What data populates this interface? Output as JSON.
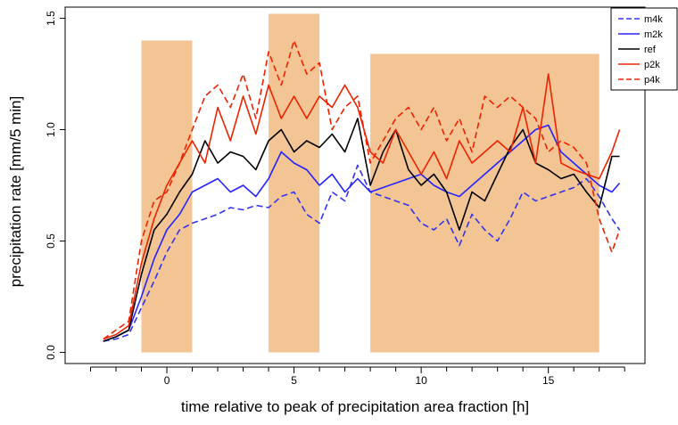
{
  "chart_data": {
    "type": "line",
    "title": "",
    "xlabel": "time relative to peak of precipitation area fraction [h]",
    "ylabel": "precipitation rate [mm/5 min]",
    "xlim": [
      -4.0,
      18.8
    ],
    "ylim": [
      -0.05,
      1.55
    ],
    "x_ticks": [
      0,
      5,
      10,
      15
    ],
    "x_minor_ticks": [
      -3,
      -2,
      -1,
      1,
      2,
      3,
      4,
      6,
      7,
      8,
      9,
      11,
      12,
      13,
      14,
      16,
      17,
      18
    ],
    "y_ticks": [
      0.0,
      0.5,
      1.0,
      1.5
    ],
    "y_tick_labels": [
      "0.0",
      "0.5",
      "1.0",
      "1.5"
    ],
    "grid": false,
    "legend_position": "top-right",
    "shaded_regions": [
      {
        "x0": -1.0,
        "x1": 1.0,
        "y_top": 1.4,
        "color": "#f3c595"
      },
      {
        "x0": 4.0,
        "x1": 6.0,
        "y_top": 1.52,
        "color": "#f3c595"
      },
      {
        "x0": 8.0,
        "x1": 17.0,
        "y_top": 1.34,
        "color": "#f3c595"
      }
    ],
    "series": [
      {
        "name": "m4k",
        "color": "#3333ee",
        "dash": true,
        "x": [
          -2.5,
          -2,
          -1.5,
          -1,
          -0.5,
          0,
          0.5,
          1,
          1.5,
          2,
          2.5,
          3,
          3.5,
          4,
          4.5,
          5,
          5.5,
          6,
          6.5,
          7,
          7.5,
          8,
          8.5,
          9,
          9.5,
          10,
          10.5,
          11,
          11.5,
          12,
          12.5,
          13,
          13.5,
          14,
          14.5,
          15,
          15.5,
          16,
          16.5,
          17,
          17.5,
          17.8
        ],
        "y": [
          0.05,
          0.06,
          0.08,
          0.2,
          0.32,
          0.45,
          0.55,
          0.58,
          0.6,
          0.62,
          0.65,
          0.64,
          0.66,
          0.65,
          0.7,
          0.72,
          0.62,
          0.58,
          0.72,
          0.68,
          0.84,
          0.72,
          0.7,
          0.68,
          0.66,
          0.58,
          0.55,
          0.6,
          0.48,
          0.62,
          0.55,
          0.5,
          0.6,
          0.72,
          0.68,
          0.7,
          0.72,
          0.74,
          0.78,
          0.7,
          0.6,
          0.55
        ]
      },
      {
        "name": "m2k",
        "color": "#2424ff",
        "dash": false,
        "x": [
          -2.5,
          -2,
          -1.5,
          -1,
          -0.5,
          0,
          0.5,
          1,
          1.5,
          2,
          2.5,
          3,
          3.5,
          4,
          4.5,
          5,
          5.5,
          6,
          6.5,
          7,
          7.5,
          8,
          8.5,
          9,
          9.5,
          10,
          10.5,
          11,
          11.5,
          12,
          12.5,
          13,
          13.5,
          14,
          14.5,
          15,
          15.5,
          16,
          16.5,
          17,
          17.5,
          17.8
        ],
        "y": [
          0.05,
          0.07,
          0.1,
          0.25,
          0.42,
          0.55,
          0.62,
          0.72,
          0.75,
          0.78,
          0.72,
          0.75,
          0.7,
          0.78,
          0.9,
          0.85,
          0.82,
          0.75,
          0.8,
          0.72,
          0.78,
          0.72,
          0.74,
          0.76,
          0.78,
          0.8,
          0.75,
          0.72,
          0.7,
          0.75,
          0.8,
          0.85,
          0.9,
          0.95,
          1.0,
          1.02,
          0.9,
          0.85,
          0.8,
          0.75,
          0.72,
          0.76
        ]
      },
      {
        "name": "ref",
        "color": "#000000",
        "dash": false,
        "x": [
          -2.5,
          -2,
          -1.5,
          -1,
          -0.5,
          0,
          0.5,
          1,
          1.5,
          2,
          2.5,
          3,
          3.5,
          4,
          4.5,
          5,
          5.5,
          6,
          6.5,
          7,
          7.5,
          8,
          8.5,
          9,
          9.5,
          10,
          10.5,
          11,
          11.5,
          12,
          12.5,
          13,
          13.5,
          14,
          14.5,
          15,
          15.5,
          16,
          16.5,
          17,
          17.5,
          17.8
        ],
        "y": [
          0.05,
          0.07,
          0.1,
          0.35,
          0.55,
          0.62,
          0.72,
          0.8,
          0.95,
          0.85,
          0.9,
          0.88,
          0.82,
          0.95,
          1.0,
          0.9,
          0.95,
          0.92,
          0.98,
          0.9,
          1.05,
          0.75,
          0.9,
          1.0,
          0.82,
          0.75,
          0.8,
          0.72,
          0.55,
          0.72,
          0.68,
          0.8,
          0.92,
          1.0,
          0.85,
          0.82,
          0.78,
          0.8,
          0.72,
          0.65,
          0.88,
          0.88
        ]
      },
      {
        "name": "p2k",
        "color": "#ee2200",
        "dash": false,
        "x": [
          -2.5,
          -2,
          -1.5,
          -1,
          -0.5,
          0,
          0.5,
          1,
          1.5,
          2,
          2.5,
          3,
          3.5,
          4,
          4.5,
          5,
          5.5,
          6,
          6.5,
          7,
          7.5,
          8,
          8.5,
          9,
          9.5,
          10,
          10.5,
          11,
          11.5,
          12,
          12.5,
          13,
          13.5,
          14,
          14.5,
          15,
          15.5,
          16,
          16.5,
          17,
          17.5,
          17.8
        ],
        "y": [
          0.06,
          0.08,
          0.12,
          0.4,
          0.6,
          0.75,
          0.85,
          0.95,
          0.85,
          1.1,
          0.95,
          1.15,
          0.98,
          1.2,
          1.05,
          1.15,
          1.05,
          1.15,
          1.1,
          1.2,
          1.1,
          0.9,
          0.85,
          1.0,
          0.9,
          0.8,
          0.9,
          0.78,
          0.95,
          0.85,
          0.9,
          0.95,
          0.9,
          1.1,
          0.85,
          1.25,
          0.85,
          0.82,
          0.8,
          0.78,
          0.9,
          1.0
        ]
      },
      {
        "name": "p4k",
        "color": "#ee2200",
        "dash": true,
        "x": [
          -2.5,
          -2,
          -1.5,
          -1,
          -0.5,
          0,
          0.5,
          1,
          1.5,
          2,
          2.5,
          3,
          3.5,
          4,
          4.5,
          5,
          5.5,
          6,
          6.5,
          7,
          7.5,
          8,
          8.5,
          9,
          9.5,
          10,
          10.5,
          11,
          11.5,
          12,
          12.5,
          13,
          13.5,
          14,
          14.5,
          15,
          15.5,
          16,
          16.5,
          17,
          17.5,
          17.8
        ],
        "y": [
          0.06,
          0.1,
          0.14,
          0.5,
          0.68,
          0.72,
          0.85,
          1.0,
          1.15,
          1.2,
          1.1,
          1.25,
          1.05,
          1.35,
          1.2,
          1.4,
          1.25,
          1.3,
          1.0,
          1.1,
          1.15,
          0.85,
          0.95,
          1.05,
          1.1,
          1.0,
          1.1,
          0.95,
          1.05,
          0.9,
          1.15,
          1.1,
          1.15,
          1.1,
          1.05,
          0.9,
          0.95,
          0.92,
          0.85,
          0.6,
          0.45,
          0.55
        ]
      }
    ]
  }
}
